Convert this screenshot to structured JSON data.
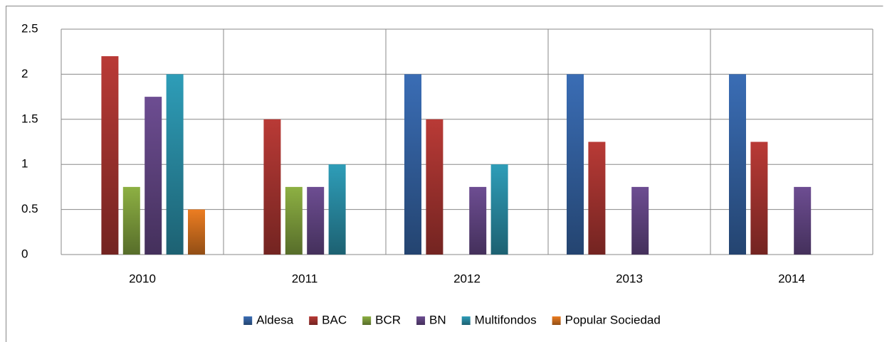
{
  "chart_data": {
    "type": "bar",
    "categories": [
      "2010",
      "2011",
      "2012",
      "2013",
      "2014"
    ],
    "series": [
      {
        "name": "Aldesa",
        "color": "#3a6db5",
        "values": [
          0,
          0,
          2,
          2,
          2
        ]
      },
      {
        "name": "BAC",
        "color": "#b93a36",
        "values": [
          2.2,
          1.5,
          1.5,
          1.25,
          1.25
        ]
      },
      {
        "name": "BCR",
        "color": "#8db043",
        "values": [
          0.75,
          0.75,
          0,
          0,
          0
        ]
      },
      {
        "name": "BN",
        "color": "#6d4d92",
        "values": [
          1.75,
          0.75,
          0.75,
          0.75,
          0.75
        ]
      },
      {
        "name": "Multifondos",
        "color": "#2e9db8",
        "values": [
          2,
          1,
          1,
          0,
          0
        ]
      },
      {
        "name": "Popular Sociedad",
        "color": "#ec7d22",
        "values": [
          0.5,
          0,
          0,
          0,
          0
        ]
      }
    ],
    "ylim": [
      0,
      2.5
    ],
    "yticks": [
      0,
      0.5,
      1,
      1.5,
      2,
      2.5
    ],
    "grid": true,
    "legend": "bottom"
  }
}
